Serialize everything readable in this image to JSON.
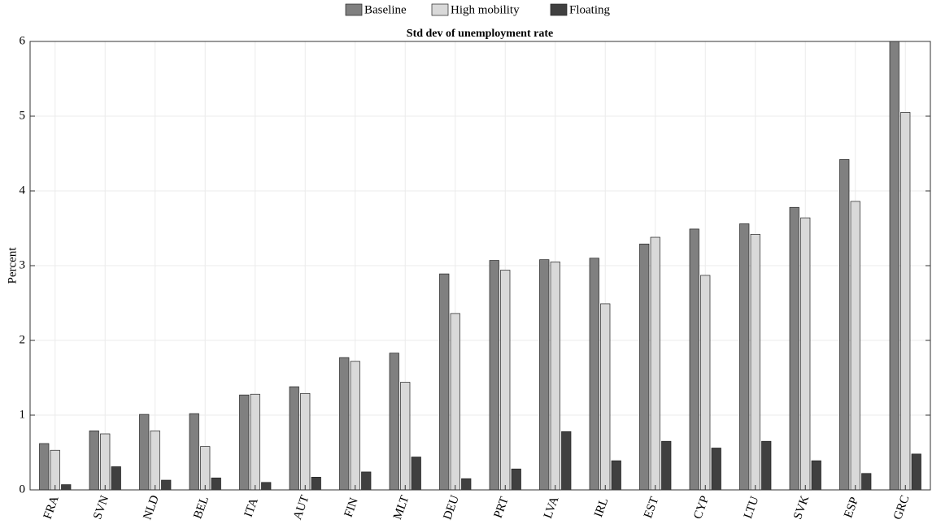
{
  "chart_data": {
    "type": "bar",
    "title": "Std dev of unemployment rate",
    "y_label": "Percent",
    "categories": [
      "FRA",
      "SVN",
      "NLD",
      "BEL",
      "ITA",
      "AUT",
      "FIN",
      "MLT",
      "DEU",
      "PRT",
      "LVA",
      "IRL",
      "EST",
      "CYP",
      "LTU",
      "SVK",
      "ESP",
      "GRC"
    ],
    "series": [
      {
        "name": "Baseline",
        "color": "#808080",
        "values": [
          0.62,
          0.79,
          1.01,
          1.02,
          1.27,
          1.38,
          1.77,
          1.83,
          2.89,
          3.07,
          3.08,
          3.1,
          3.29,
          3.49,
          3.56,
          3.78,
          4.42,
          6.0
        ]
      },
      {
        "name": "High mobility",
        "color": "#d9d9d9",
        "values": [
          0.53,
          0.75,
          0.79,
          0.58,
          1.28,
          1.29,
          1.72,
          1.44,
          2.36,
          2.94,
          3.05,
          2.49,
          3.38,
          2.87,
          3.42,
          3.64,
          3.86,
          5.05
        ]
      },
      {
        "name": "Floating",
        "color": "#404040",
        "values": [
          0.07,
          0.31,
          0.13,
          0.16,
          0.1,
          0.17,
          0.24,
          0.44,
          0.15,
          0.28,
          0.78,
          0.39,
          0.65,
          0.56,
          0.65,
          0.39,
          0.22,
          0.48
        ]
      }
    ],
    "ylim": [
      0,
      6
    ],
    "yticks": [
      0,
      1,
      2,
      3,
      4,
      5,
      6
    ],
    "grid": true,
    "legend": "top"
  }
}
